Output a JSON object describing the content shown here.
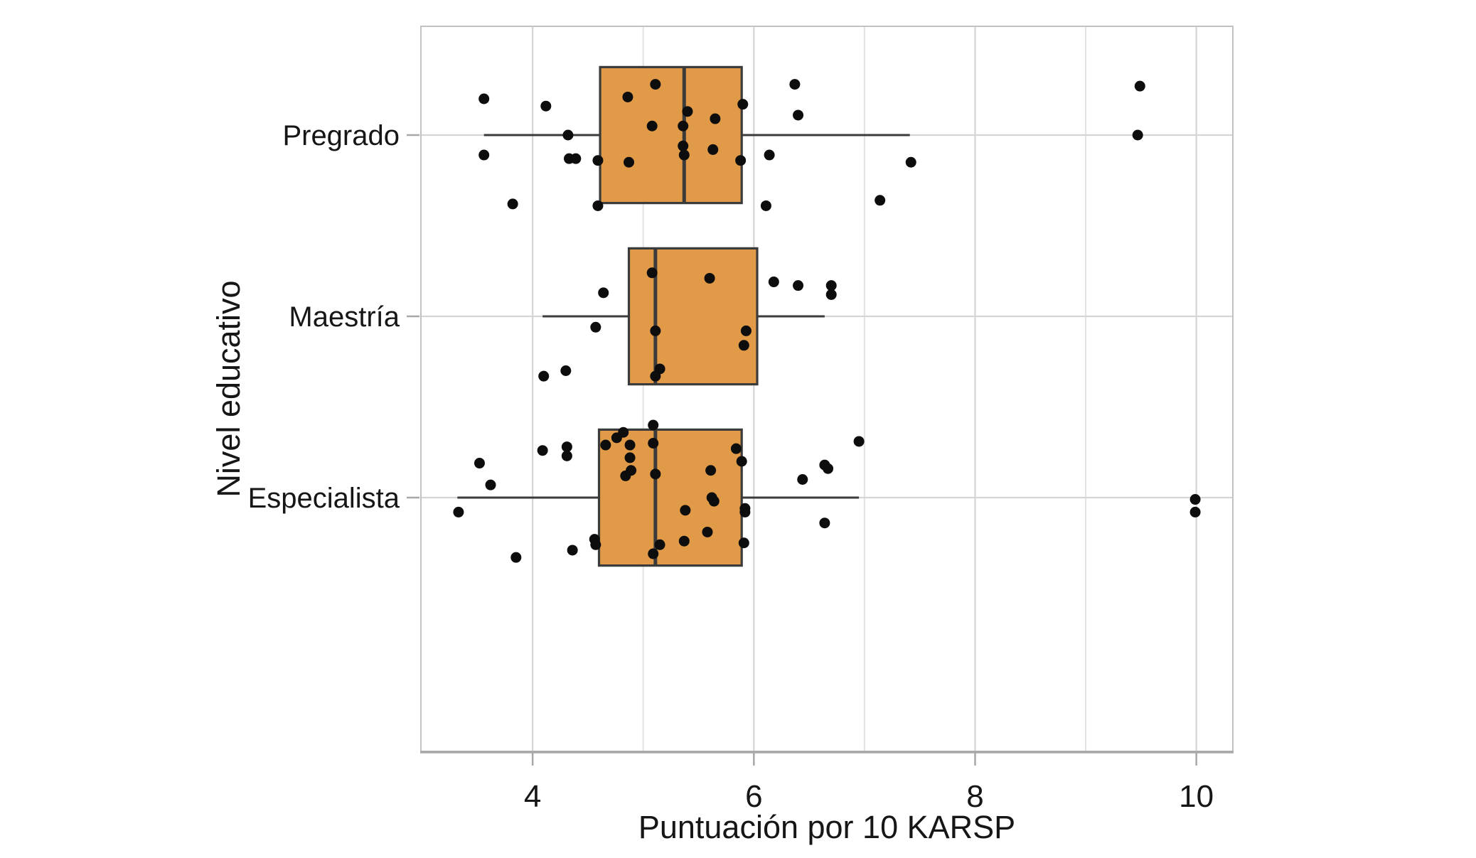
{
  "chart_data": {
    "type": "boxplot",
    "orientation": "horizontal",
    "title": "",
    "xlabel": "Puntuación por 10 KARSP",
    "ylabel": "Nivel educativo",
    "xlim": [
      2.99,
      10.33
    ],
    "x_ticks": [
      4,
      6,
      8,
      10
    ],
    "x_minor_gridlines": [
      5,
      7,
      9
    ],
    "grid": "on",
    "legend": "none",
    "categories": [
      "Pregrado",
      "Maestría",
      "Especialista"
    ],
    "band_geometry": {
      "outer_expand_units": 0.6,
      "box_width_units": 0.75,
      "jitter_unit_note": "point dy is offset in category-band units"
    },
    "colors": {
      "box_fill": "#E09A48",
      "box_stroke": "#3B3B3B",
      "whisker": "#3B3B3B",
      "point": "#0D0D0D",
      "grid_major": "#D5D5D5",
      "grid_minor": "#E2E2E2",
      "panel_border": "#C2C2C2",
      "axis_line": "#A8A8A8",
      "tick": "#A8A8A8",
      "text": "#161616"
    },
    "series": [
      {
        "category": "Pregrado",
        "whisker_low": 3.56,
        "q1": 4.61,
        "median": 5.37,
        "q3": 5.89,
        "whisker_high": 7.41,
        "points": [
          [
            3.56,
            -0.2
          ],
          [
            3.56,
            0.11
          ],
          [
            3.82,
            0.38
          ],
          [
            4.12,
            -0.16
          ],
          [
            4.32,
            0.0
          ],
          [
            4.33,
            0.13
          ],
          [
            4.39,
            0.13
          ],
          [
            4.59,
            0.14
          ],
          [
            4.59,
            0.39
          ],
          [
            4.86,
            -0.21
          ],
          [
            4.87,
            0.15
          ],
          [
            5.08,
            -0.05
          ],
          [
            5.11,
            -0.28
          ],
          [
            5.36,
            -0.05
          ],
          [
            5.36,
            0.06
          ],
          [
            5.37,
            0.11
          ],
          [
            5.4,
            -0.13
          ],
          [
            5.63,
            0.08
          ],
          [
            5.65,
            -0.09
          ],
          [
            5.88,
            0.14
          ],
          [
            5.9,
            -0.17
          ],
          [
            6.11,
            0.39
          ],
          [
            6.14,
            0.11
          ],
          [
            6.37,
            -0.28
          ],
          [
            6.4,
            -0.11
          ],
          [
            7.14,
            0.36
          ],
          [
            7.42,
            0.15
          ],
          [
            9.49,
            -0.27
          ],
          [
            9.47,
            0.0
          ]
        ]
      },
      {
        "category": "Maestría",
        "whisker_low": 4.09,
        "q1": 4.87,
        "median": 5.11,
        "q3": 6.03,
        "whisker_high": 6.64,
        "points": [
          [
            5.08,
            -0.24
          ],
          [
            5.6,
            -0.21
          ],
          [
            4.64,
            -0.13
          ],
          [
            6.18,
            -0.19
          ],
          [
            6.4,
            -0.17
          ],
          [
            6.7,
            -0.17
          ],
          [
            6.7,
            -0.12
          ],
          [
            4.57,
            0.06
          ],
          [
            5.11,
            0.08
          ],
          [
            5.93,
            0.08
          ],
          [
            5.91,
            0.16
          ],
          [
            4.1,
            0.33
          ],
          [
            4.3,
            0.3
          ],
          [
            5.15,
            0.29
          ],
          [
            5.11,
            0.33
          ]
        ]
      },
      {
        "category": "Especialista",
        "whisker_low": 3.32,
        "q1": 4.6,
        "median": 5.11,
        "q3": 5.89,
        "whisker_high": 6.95,
        "points": [
          [
            4.09,
            -0.26
          ],
          [
            4.31,
            -0.28
          ],
          [
            4.31,
            -0.23
          ],
          [
            3.52,
            -0.19
          ],
          [
            3.62,
            -0.07
          ],
          [
            3.33,
            0.08
          ],
          [
            3.85,
            0.33
          ],
          [
            4.36,
            0.29
          ],
          [
            4.56,
            0.23
          ],
          [
            4.57,
            0.26
          ],
          [
            5.09,
            -0.4
          ],
          [
            4.82,
            -0.36
          ],
          [
            4.76,
            -0.33
          ],
          [
            4.66,
            -0.29
          ],
          [
            4.88,
            -0.29
          ],
          [
            4.88,
            -0.22
          ],
          [
            4.89,
            -0.15
          ],
          [
            4.84,
            -0.12
          ],
          [
            5.09,
            -0.3
          ],
          [
            5.11,
            -0.13
          ],
          [
            5.61,
            -0.15
          ],
          [
            5.84,
            -0.27
          ],
          [
            5.89,
            -0.2
          ],
          [
            5.62,
            0.0
          ],
          [
            5.64,
            0.02
          ],
          [
            5.38,
            0.07
          ],
          [
            5.92,
            0.06
          ],
          [
            5.92,
            0.08
          ],
          [
            5.58,
            0.19
          ],
          [
            5.37,
            0.24
          ],
          [
            5.91,
            0.25
          ],
          [
            5.15,
            0.26
          ],
          [
            5.09,
            0.31
          ],
          [
            6.44,
            -0.1
          ],
          [
            6.64,
            -0.18
          ],
          [
            6.67,
            -0.16
          ],
          [
            6.95,
            -0.31
          ],
          [
            6.64,
            0.14
          ],
          [
            9.99,
            0.01
          ],
          [
            9.99,
            0.08
          ]
        ]
      }
    ]
  }
}
